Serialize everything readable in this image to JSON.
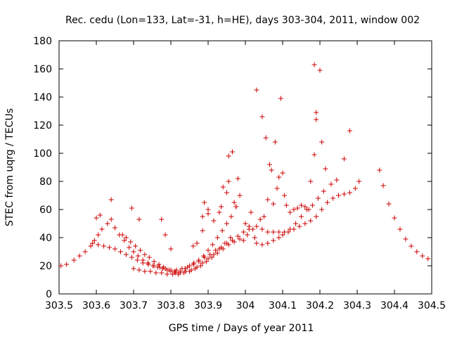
{
  "chart_data": {
    "type": "scatter",
    "title": "Rec. cedu (Lon=133, Lat=-31, h=HE), days 303-304, 2011, window 002",
    "xlabel": "GPS time / Days of year 2011",
    "ylabel": "STEC from uqrg / TECUs",
    "xlim": [
      303.5,
      304.5
    ],
    "ylim": [
      0,
      180
    ],
    "x_ticks": [
      "303.5",
      "303.6",
      "303.7",
      "303.8",
      "303.9",
      "304",
      "304.1",
      "304.2",
      "304.3",
      "304.4",
      "304.5"
    ],
    "y_ticks": [
      "0",
      "20",
      "40",
      "60",
      "80",
      "100",
      "120",
      "140",
      "160",
      "180"
    ],
    "grid": false,
    "legend": "none",
    "marker": "+",
    "color": "#cc0000",
    "points": [
      [
        303.505,
        20
      ],
      [
        303.52,
        21
      ],
      [
        303.54,
        24
      ],
      [
        303.555,
        27
      ],
      [
        303.57,
        30
      ],
      [
        303.585,
        34
      ],
      [
        303.595,
        38
      ],
      [
        303.605,
        42
      ],
      [
        303.615,
        46
      ],
      [
        303.63,
        50
      ],
      [
        303.64,
        53
      ],
      [
        303.65,
        47
      ],
      [
        303.662,
        42
      ],
      [
        303.675,
        38
      ],
      [
        303.688,
        33
      ],
      [
        303.7,
        30
      ],
      [
        303.712,
        27
      ],
      [
        303.725,
        24
      ],
      [
        303.738,
        22
      ],
      [
        303.752,
        20
      ],
      [
        303.765,
        19
      ],
      [
        303.778,
        18
      ],
      [
        303.79,
        17
      ],
      [
        303.8,
        16
      ],
      [
        303.812,
        15
      ],
      [
        303.825,
        16
      ],
      [
        303.838,
        18
      ],
      [
        303.85,
        20
      ],
      [
        303.862,
        22
      ],
      [
        303.875,
        24
      ],
      [
        303.888,
        27
      ],
      [
        303.9,
        31
      ],
      [
        303.912,
        35
      ],
      [
        303.925,
        40
      ],
      [
        303.938,
        45
      ],
      [
        303.95,
        50
      ],
      [
        303.962,
        55
      ],
      [
        303.975,
        62
      ],
      [
        303.985,
        70
      ],
      [
        303.59,
        36
      ],
      [
        303.605,
        35
      ],
      [
        303.62,
        34
      ],
      [
        303.635,
        33
      ],
      [
        303.65,
        32
      ],
      [
        303.665,
        30
      ],
      [
        303.68,
        28
      ],
      [
        303.695,
        26
      ],
      [
        303.71,
        24
      ],
      [
        303.725,
        22
      ],
      [
        303.74,
        21
      ],
      [
        303.755,
        20
      ],
      [
        303.77,
        19
      ],
      [
        303.785,
        18
      ],
      [
        303.8,
        17
      ],
      [
        303.815,
        17
      ],
      [
        303.83,
        18
      ],
      [
        303.845,
        19
      ],
      [
        303.86,
        21
      ],
      [
        303.875,
        23
      ],
      [
        303.89,
        26
      ],
      [
        303.905,
        28
      ],
      [
        303.92,
        31
      ],
      [
        303.935,
        33
      ],
      [
        303.95,
        36
      ],
      [
        303.965,
        38
      ],
      [
        303.98,
        41
      ],
      [
        303.995,
        44
      ],
      [
        304.01,
        46
      ],
      [
        303.67,
        42
      ],
      [
        303.68,
        40
      ],
      [
        303.692,
        37
      ],
      [
        303.705,
        34
      ],
      [
        303.718,
        31
      ],
      [
        303.73,
        28
      ],
      [
        303.742,
        26
      ],
      [
        303.755,
        23
      ],
      [
        303.768,
        21
      ],
      [
        303.78,
        19
      ],
      [
        303.795,
        17
      ],
      [
        303.81,
        16
      ],
      [
        303.825,
        15
      ],
      [
        303.84,
        16
      ],
      [
        303.855,
        17
      ],
      [
        303.87,
        19
      ],
      [
        303.885,
        22
      ],
      [
        303.9,
        25
      ],
      [
        303.915,
        28
      ],
      [
        303.93,
        32
      ],
      [
        303.945,
        36
      ],
      [
        303.96,
        40
      ],
      [
        303.7,
        18
      ],
      [
        303.715,
        17
      ],
      [
        303.73,
        16
      ],
      [
        303.745,
        16
      ],
      [
        303.76,
        15
      ],
      [
        303.775,
        15
      ],
      [
        303.79,
        14
      ],
      [
        303.805,
        14
      ],
      [
        303.82,
        14
      ],
      [
        303.835,
        15
      ],
      [
        303.85,
        16
      ],
      [
        303.865,
        18
      ],
      [
        303.88,
        20
      ],
      [
        303.895,
        23
      ],
      [
        303.91,
        26
      ],
      [
        303.925,
        29
      ],
      [
        303.94,
        32
      ],
      [
        303.955,
        35
      ],
      [
        303.97,
        37
      ],
      [
        303.985,
        39
      ],
      [
        303.6,
        54
      ],
      [
        303.61,
        56
      ],
      [
        303.64,
        67
      ],
      [
        303.695,
        61
      ],
      [
        303.715,
        53
      ],
      [
        303.775,
        53
      ],
      [
        303.785,
        42
      ],
      [
        303.8,
        32
      ],
      [
        303.86,
        34
      ],
      [
        303.87,
        36
      ],
      [
        303.885,
        45
      ],
      [
        303.885,
        55
      ],
      [
        303.89,
        65
      ],
      [
        303.9,
        60
      ],
      [
        303.9,
        57
      ],
      [
        303.915,
        52
      ],
      [
        303.93,
        58
      ],
      [
        303.935,
        62
      ],
      [
        303.94,
        76
      ],
      [
        303.95,
        72
      ],
      [
        303.955,
        80
      ],
      [
        303.955,
        98
      ],
      [
        303.965,
        101
      ],
      [
        303.97,
        65
      ],
      [
        303.975,
        62
      ],
      [
        303.98,
        82
      ],
      [
        303.995,
        38
      ],
      [
        304.0,
        50
      ],
      [
        304.005,
        42
      ],
      [
        304.01,
        48
      ],
      [
        304.015,
        58
      ],
      [
        304.02,
        46
      ],
      [
        304.025,
        40
      ],
      [
        304.03,
        145
      ],
      [
        304.04,
        53
      ],
      [
        304.045,
        126
      ],
      [
        304.05,
        55
      ],
      [
        304.055,
        111
      ],
      [
        304.06,
        67
      ],
      [
        304.065,
        92
      ],
      [
        304.07,
        88
      ],
      [
        304.075,
        64
      ],
      [
        304.08,
        108
      ],
      [
        304.085,
        75
      ],
      [
        304.09,
        83
      ],
      [
        304.095,
        139
      ],
      [
        304.1,
        86
      ],
      [
        304.105,
        70
      ],
      [
        304.11,
        63
      ],
      [
        304.12,
        58
      ],
      [
        304.03,
        36
      ],
      [
        304.045,
        35
      ],
      [
        304.06,
        36
      ],
      [
        304.075,
        38
      ],
      [
        304.09,
        40
      ],
      [
        304.1,
        42
      ],
      [
        304.115,
        44
      ],
      [
        304.13,
        46
      ],
      [
        304.145,
        48
      ],
      [
        304.16,
        50
      ],
      [
        304.175,
        52
      ],
      [
        304.19,
        55
      ],
      [
        304.205,
        60
      ],
      [
        304.22,
        65
      ],
      [
        304.235,
        68
      ],
      [
        304.25,
        70
      ],
      [
        304.265,
        71
      ],
      [
        304.28,
        72
      ],
      [
        304.295,
        75
      ],
      [
        304.305,
        80
      ],
      [
        304.03,
        48
      ],
      [
        304.045,
        46
      ],
      [
        304.06,
        44
      ],
      [
        304.075,
        44
      ],
      [
        304.09,
        44
      ],
      [
        304.105,
        44
      ],
      [
        304.12,
        46
      ],
      [
        304.135,
        50
      ],
      [
        304.15,
        55
      ],
      [
        304.165,
        60
      ],
      [
        304.18,
        63
      ],
      [
        304.195,
        68
      ],
      [
        304.21,
        73
      ],
      [
        304.13,
        60
      ],
      [
        304.14,
        61
      ],
      [
        304.15,
        63
      ],
      [
        304.16,
        62
      ],
      [
        304.17,
        60
      ],
      [
        304.175,
        80
      ],
      [
        304.185,
        163
      ],
      [
        304.185,
        99
      ],
      [
        304.19,
        129
      ],
      [
        304.19,
        124
      ],
      [
        304.2,
        159
      ],
      [
        304.205,
        108
      ],
      [
        304.215,
        89
      ],
      [
        304.23,
        78
      ],
      [
        304.245,
        81
      ],
      [
        304.265,
        96
      ],
      [
        304.28,
        116
      ],
      [
        304.36,
        88
      ],
      [
        304.37,
        77
      ],
      [
        304.385,
        64
      ],
      [
        304.4,
        54
      ],
      [
        304.415,
        46
      ],
      [
        304.43,
        39
      ],
      [
        304.445,
        34
      ],
      [
        304.46,
        30
      ],
      [
        304.475,
        27
      ],
      [
        304.49,
        25
      ]
    ]
  }
}
